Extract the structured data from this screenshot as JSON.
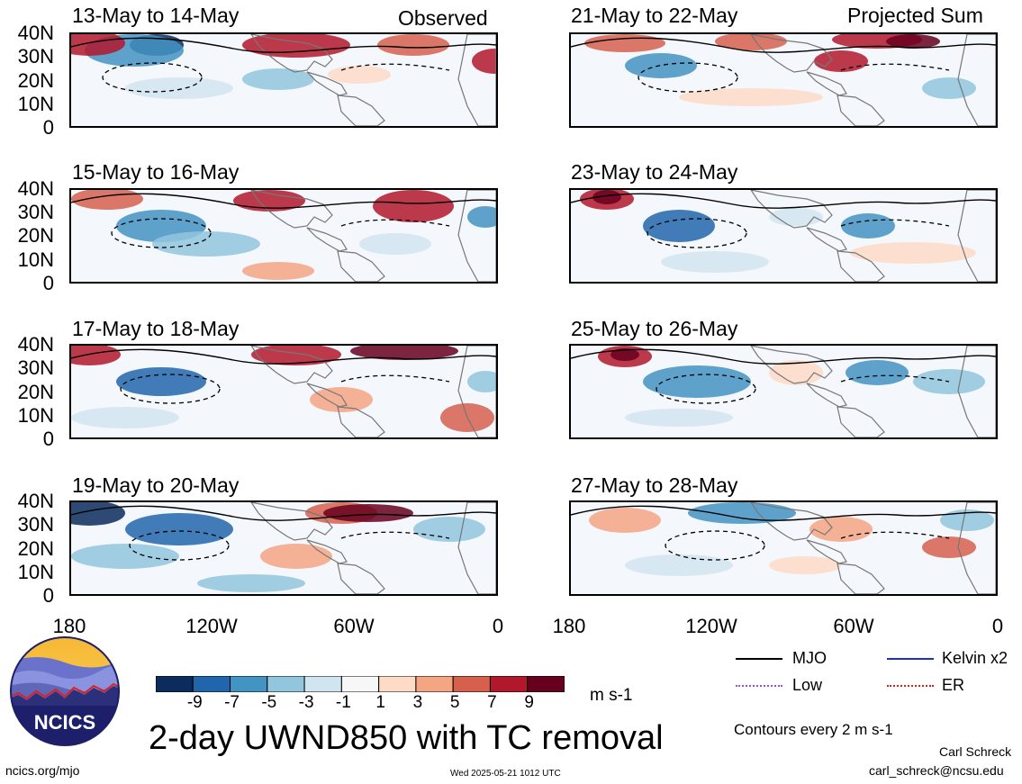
{
  "header": {
    "left_label": "Observed",
    "right_label": "Projected Sum"
  },
  "panels": [
    {
      "id": "p1",
      "title": "13-May to 14-May"
    },
    {
      "id": "p2",
      "title": "15-May to 16-May"
    },
    {
      "id": "p3",
      "title": "17-May to 18-May"
    },
    {
      "id": "p4",
      "title": "19-May to 20-May"
    },
    {
      "id": "p5",
      "title": "21-May to 22-May"
    },
    {
      "id": "p6",
      "title": "23-May to 24-May"
    },
    {
      "id": "p7",
      "title": "25-May to 26-May"
    },
    {
      "id": "p8",
      "title": "27-May to 28-May"
    }
  ],
  "axes": {
    "lat_ticks": [
      "40N",
      "30N",
      "20N",
      "10N",
      "0"
    ],
    "lon_ticks": [
      "180",
      "120W",
      "60W",
      "0"
    ]
  },
  "colorbar": {
    "ticks": [
      "-9",
      "-7",
      "-5",
      "-3",
      "-1",
      "1",
      "3",
      "5",
      "7",
      "9"
    ],
    "colors": [
      "#0b2c5c",
      "#2166ac",
      "#4393c3",
      "#92c5de",
      "#d1e5f0",
      "#f7f7f7",
      "#fddbc7",
      "#f4a582",
      "#d6604d",
      "#b2182b",
      "#67001f"
    ],
    "units": "m s-1"
  },
  "main_title": "2-day UWND850 with TC removal",
  "legend": {
    "items": [
      {
        "label": "MJO",
        "color": "#000000"
      },
      {
        "label": "Kelvin x2",
        "color": "#1f2ecc"
      },
      {
        "label": "Low",
        "color": "#9b4fd6"
      },
      {
        "label": "ER",
        "color": "#d62020"
      }
    ],
    "note": "Contours every 2 m s-1"
  },
  "footer": {
    "logo_text": "NCICS",
    "site": "ncics.org/mjo",
    "timestamp": "Wed 2025-05-21 1012 UTC",
    "author": "Carl Schreck",
    "email": "carl_schreck@ncsu.edu"
  }
}
